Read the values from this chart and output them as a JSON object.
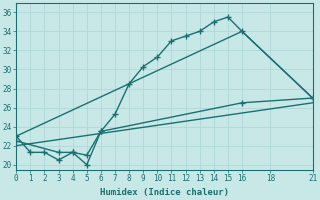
{
  "xlabel": "Humidex (Indice chaleur)",
  "bg_color": "#c8e8e8",
  "grid_color": "#b0d8d8",
  "line_color": "#1a7070",
  "xlim": [
    0,
    21
  ],
  "ylim": [
    19.5,
    37
  ],
  "yticks": [
    20,
    22,
    24,
    26,
    28,
    30,
    32,
    34,
    36
  ],
  "xticks": [
    0,
    1,
    2,
    3,
    4,
    5,
    6,
    7,
    8,
    9,
    10,
    11,
    12,
    13,
    14,
    15,
    16,
    18,
    21
  ],
  "series": [
    {
      "x": [
        0,
        1,
        2,
        3,
        4,
        5,
        6,
        7,
        8,
        9,
        10,
        11,
        12,
        13,
        14,
        15,
        16,
        21
      ],
      "y": [
        23,
        21.3,
        21.3,
        20.5,
        21.3,
        20,
        23.5,
        25.3,
        28.5,
        30.3,
        31.3,
        33,
        33.5,
        34,
        35,
        35.5,
        34,
        27
      ],
      "marker": "+",
      "markersize": 4,
      "linewidth": 1.0
    },
    {
      "x": [
        0,
        16,
        21
      ],
      "y": [
        23,
        34,
        27
      ],
      "marker": null,
      "markersize": 0,
      "linewidth": 1.0
    },
    {
      "x": [
        0,
        3,
        4,
        5,
        6,
        16,
        21
      ],
      "y": [
        22.5,
        21.3,
        21.3,
        21,
        23.5,
        26.5,
        27
      ],
      "marker": "+",
      "markersize": 4,
      "linewidth": 1.0
    },
    {
      "x": [
        0,
        21
      ],
      "y": [
        22,
        26.5
      ],
      "marker": null,
      "markersize": 0,
      "linewidth": 1.0
    }
  ]
}
